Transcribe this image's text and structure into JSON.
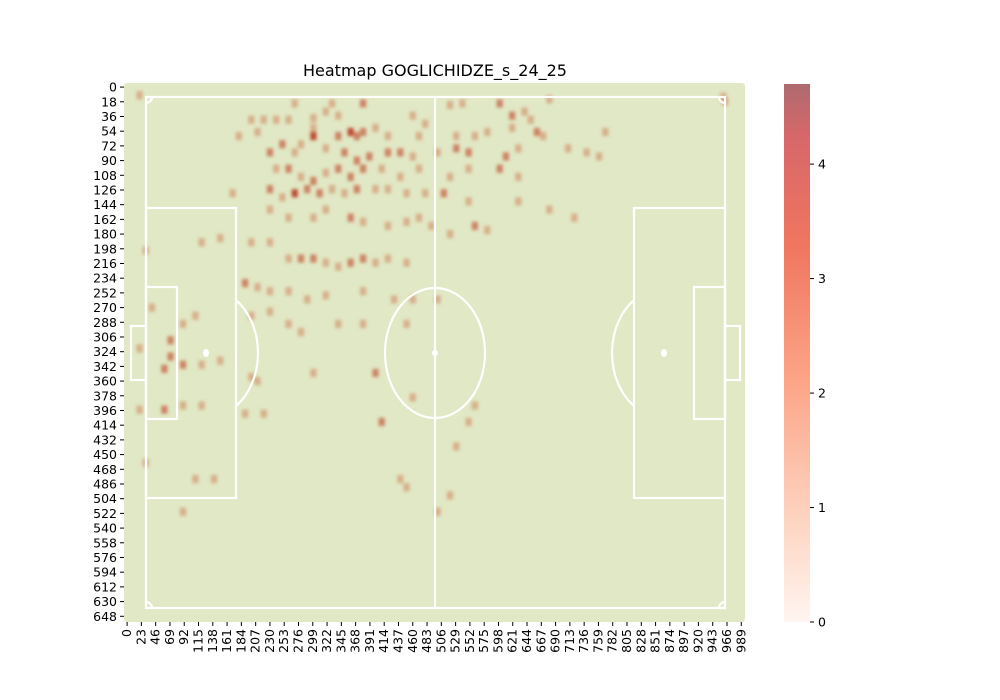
{
  "chart_data": {
    "type": "heatmap",
    "title": "Heatmap GOGLICHIDZE_s_24_25",
    "xlabel": "",
    "ylabel": "",
    "x_ticks": [
      "0",
      "23",
      "46",
      "69",
      "92",
      "115",
      "138",
      "161",
      "184",
      "207",
      "230",
      "253",
      "276",
      "299",
      "322",
      "345",
      "368",
      "391",
      "414",
      "437",
      "460",
      "483",
      "506",
      "529",
      "552",
      "575",
      "598",
      "621",
      "644",
      "667",
      "690",
      "713",
      "736",
      "759",
      "782",
      "805",
      "828",
      "851",
      "874",
      "897",
      "920",
      "943",
      "966",
      "989"
    ],
    "y_ticks": [
      "0",
      "18",
      "36",
      "54",
      "72",
      "90",
      "108",
      "126",
      "144",
      "162",
      "180",
      "198",
      "216",
      "234",
      "252",
      "270",
      "288",
      "306",
      "324",
      "342",
      "360",
      "378",
      "396",
      "414",
      "432",
      "450",
      "468",
      "486",
      "504",
      "522",
      "540",
      "558",
      "576",
      "594",
      "612",
      "630",
      "648"
    ],
    "xlim": [
      0,
      1000
    ],
    "ylim": [
      660,
      0
    ],
    "cell_size": 10,
    "colorbar": {
      "min": 0,
      "max": 4.7,
      "ticks": [
        "0",
        "1",
        "2",
        "3",
        "4"
      ],
      "colormap": "Reds"
    },
    "pitch": {
      "background": "#e1e8c5",
      "line_color": "#ffffff"
    },
    "cells": [
      [
        20,
        10,
        1
      ],
      [
        680,
        15,
        1
      ],
      [
        960,
        12,
        1
      ],
      [
        963,
        18,
        1
      ],
      [
        380,
        20,
        2
      ],
      [
        520,
        22,
        1
      ],
      [
        540,
        20,
        1
      ],
      [
        600,
        20,
        2
      ],
      [
        270,
        20,
        1
      ],
      [
        330,
        20,
        1
      ],
      [
        200,
        40,
        1
      ],
      [
        220,
        40,
        1
      ],
      [
        240,
        40,
        1
      ],
      [
        260,
        40,
        1
      ],
      [
        300,
        38,
        1
      ],
      [
        320,
        30,
        1
      ],
      [
        340,
        35,
        1
      ],
      [
        460,
        35,
        1
      ],
      [
        480,
        45,
        1
      ],
      [
        620,
        35,
        2
      ],
      [
        640,
        30,
        1
      ],
      [
        650,
        40,
        1
      ],
      [
        180,
        60,
        1
      ],
      [
        210,
        55,
        1
      ],
      [
        300,
        60,
        3
      ],
      [
        300,
        50,
        1
      ],
      [
        340,
        60,
        2
      ],
      [
        360,
        55,
        3
      ],
      [
        370,
        60,
        2
      ],
      [
        380,
        55,
        2
      ],
      [
        400,
        50,
        1
      ],
      [
        420,
        60,
        1
      ],
      [
        470,
        60,
        1
      ],
      [
        530,
        60,
        1
      ],
      [
        560,
        60,
        1
      ],
      [
        580,
        55,
        1
      ],
      [
        620,
        50,
        1
      ],
      [
        660,
        55,
        2
      ],
      [
        670,
        60,
        1
      ],
      [
        770,
        55,
        1
      ],
      [
        230,
        80,
        2
      ],
      [
        250,
        70,
        2
      ],
      [
        270,
        80,
        1
      ],
      [
        280,
        70,
        1
      ],
      [
        320,
        75,
        1
      ],
      [
        350,
        80,
        2
      ],
      [
        370,
        90,
        2
      ],
      [
        390,
        85,
        2
      ],
      [
        420,
        80,
        2
      ],
      [
        440,
        80,
        2
      ],
      [
        460,
        85,
        1
      ],
      [
        500,
        80,
        1
      ],
      [
        530,
        75,
        2
      ],
      [
        550,
        80,
        2
      ],
      [
        610,
        85,
        2
      ],
      [
        630,
        75,
        1
      ],
      [
        710,
        75,
        1
      ],
      [
        740,
        80,
        1
      ],
      [
        760,
        85,
        1
      ],
      [
        240,
        100,
        1
      ],
      [
        260,
        100,
        2
      ],
      [
        280,
        110,
        1
      ],
      [
        300,
        115,
        2
      ],
      [
        320,
        105,
        1
      ],
      [
        340,
        100,
        2
      ],
      [
        360,
        110,
        2
      ],
      [
        380,
        100,
        2
      ],
      [
        410,
        100,
        1
      ],
      [
        440,
        110,
        1
      ],
      [
        470,
        100,
        1
      ],
      [
        520,
        110,
        1
      ],
      [
        550,
        100,
        1
      ],
      [
        600,
        100,
        2
      ],
      [
        630,
        110,
        1
      ],
      [
        170,
        130,
        1
      ],
      [
        230,
        125,
        2
      ],
      [
        250,
        135,
        1
      ],
      [
        270,
        130,
        3
      ],
      [
        290,
        125,
        2
      ],
      [
        310,
        130,
        2
      ],
      [
        330,
        125,
        1
      ],
      [
        350,
        130,
        1
      ],
      [
        370,
        125,
        2
      ],
      [
        400,
        125,
        1
      ],
      [
        420,
        125,
        1
      ],
      [
        450,
        130,
        1
      ],
      [
        480,
        130,
        1
      ],
      [
        510,
        130,
        2
      ],
      [
        550,
        140,
        1
      ],
      [
        630,
        140,
        1
      ],
      [
        680,
        150,
        1
      ],
      [
        720,
        160,
        1
      ],
      [
        230,
        150,
        1
      ],
      [
        260,
        160,
        1
      ],
      [
        300,
        160,
        1
      ],
      [
        320,
        150,
        1
      ],
      [
        360,
        160,
        2
      ],
      [
        380,
        165,
        1
      ],
      [
        420,
        170,
        1
      ],
      [
        450,
        165,
        1
      ],
      [
        470,
        160,
        1
      ],
      [
        490,
        170,
        1
      ],
      [
        520,
        180,
        1
      ],
      [
        560,
        170,
        2
      ],
      [
        580,
        175,
        1
      ],
      [
        30,
        200,
        1
      ],
      [
        120,
        190,
        1
      ],
      [
        150,
        185,
        1
      ],
      [
        200,
        190,
        1
      ],
      [
        230,
        190,
        1
      ],
      [
        260,
        210,
        1
      ],
      [
        280,
        210,
        2
      ],
      [
        300,
        210,
        2
      ],
      [
        320,
        215,
        1
      ],
      [
        340,
        220,
        1
      ],
      [
        360,
        215,
        2
      ],
      [
        380,
        210,
        2
      ],
      [
        400,
        215,
        1
      ],
      [
        420,
        210,
        1
      ],
      [
        450,
        215,
        1
      ],
      [
        190,
        240,
        2
      ],
      [
        210,
        245,
        1
      ],
      [
        230,
        250,
        1
      ],
      [
        260,
        250,
        1
      ],
      [
        290,
        260,
        1
      ],
      [
        320,
        255,
        1
      ],
      [
        380,
        250,
        1
      ],
      [
        430,
        260,
        1
      ],
      [
        460,
        260,
        1
      ],
      [
        500,
        260,
        1
      ],
      [
        40,
        270,
        1
      ],
      [
        90,
        290,
        1
      ],
      [
        110,
        280,
        1
      ],
      [
        200,
        280,
        1
      ],
      [
        230,
        275,
        1
      ],
      [
        260,
        290,
        1
      ],
      [
        280,
        300,
        1
      ],
      [
        340,
        290,
        1
      ],
      [
        380,
        290,
        1
      ],
      [
        450,
        290,
        1
      ],
      [
        20,
        320,
        1
      ],
      [
        70,
        330,
        2
      ],
      [
        70,
        310,
        2
      ],
      [
        60,
        345,
        2
      ],
      [
        90,
        340,
        2
      ],
      [
        120,
        340,
        1
      ],
      [
        150,
        335,
        1
      ],
      [
        200,
        355,
        1
      ],
      [
        210,
        360,
        1
      ],
      [
        300,
        350,
        1
      ],
      [
        400,
        350,
        2
      ],
      [
        460,
        380,
        1
      ],
      [
        560,
        390,
        1
      ],
      [
        20,
        395,
        1
      ],
      [
        60,
        395,
        2
      ],
      [
        90,
        390,
        1
      ],
      [
        120,
        390,
        1
      ],
      [
        190,
        400,
        1
      ],
      [
        220,
        400,
        1
      ],
      [
        410,
        410,
        2
      ],
      [
        550,
        410,
        1
      ],
      [
        530,
        440,
        1
      ],
      [
        30,
        460,
        1
      ],
      [
        110,
        480,
        1
      ],
      [
        140,
        480,
        1
      ],
      [
        440,
        480,
        1
      ],
      [
        450,
        490,
        1
      ],
      [
        520,
        500,
        1
      ],
      [
        500,
        520,
        1
      ],
      [
        90,
        520,
        1
      ]
    ]
  }
}
